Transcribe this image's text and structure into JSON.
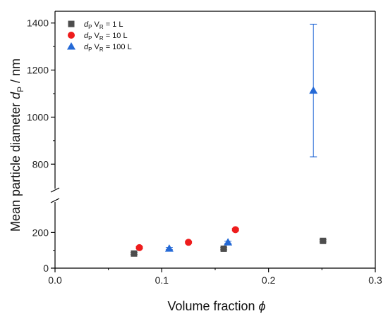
{
  "chart_data": {
    "type": "scatter",
    "xlabel": {
      "text": "Volume fraction ",
      "symbol": "ϕ"
    },
    "ylabel": {
      "text": "Mean particle diameter ",
      "symbol": "d",
      "subscript": "P",
      "suffix": " / nm"
    },
    "xlim": [
      0,
      0.3
    ],
    "ylim_lower": [
      0,
      320
    ],
    "ylim_upper": [
      720,
      1450
    ],
    "axis_break": "y",
    "x_ticks": [
      "0.0",
      "0.1",
      "0.2",
      "0.3"
    ],
    "y_ticks_lower": [
      "0",
      "200"
    ],
    "y_ticks_upper": [
      "800",
      "1000",
      "1200",
      "1400"
    ],
    "legend_position": "top-left",
    "series": [
      {
        "name": {
          "sym": "d",
          "sub1": "P",
          "mid": " V",
          "sub2": "R",
          "rest": " = 1 L"
        },
        "marker": "square",
        "color": "#4d4d4d",
        "x": [
          0.074,
          0.158,
          0.251
        ],
        "y": [
          82,
          109,
          153
        ],
        "yerr": [
          6,
          6,
          6
        ]
      },
      {
        "name": {
          "sym": "d",
          "sub1": "P",
          "mid": " V",
          "sub2": "R",
          "rest": " = 10 L"
        },
        "marker": "circle",
        "color": "#ee1c1c",
        "x": [
          0.079,
          0.125,
          0.169
        ],
        "y": [
          115,
          145,
          216
        ],
        "yerr": [
          6,
          6,
          6
        ]
      },
      {
        "name": {
          "sym": "d",
          "sub1": "P",
          "mid": " V",
          "sub2": "R",
          "rest": " = 100 L"
        },
        "marker": "triangle",
        "color": "#2469d6",
        "x": [
          0.107,
          0.162,
          0.242
        ],
        "y": [
          110,
          145,
          1113
        ],
        "yerr": [
          6,
          6,
          282
        ]
      }
    ]
  }
}
